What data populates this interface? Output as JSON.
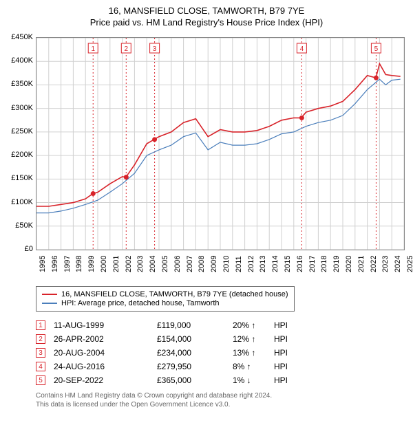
{
  "title_line1": "16, MANSFIELD CLOSE, TAMWORTH, B79 7YE",
  "title_line2": "Price paid vs. HM Land Registry's House Price Index (HPI)",
  "chart": {
    "type": "line",
    "background_color": "#ffffff",
    "grid_color": "#d0d0d0",
    "border_color": "#888888",
    "ylim": [
      0,
      450000
    ],
    "ytick_step": 50000,
    "ytick_labels": [
      "£0",
      "£50K",
      "£100K",
      "£150K",
      "£200K",
      "£250K",
      "£300K",
      "£350K",
      "£400K",
      "£450K"
    ],
    "xlim": [
      1995,
      2025
    ],
    "xtick_step": 1,
    "series": [
      {
        "name": "16, MANSFIELD CLOSE, TAMWORTH, B79 7YE (detached house)",
        "color": "#d8232a",
        "line_width": 1.6,
        "data": [
          [
            1995,
            92000
          ],
          [
            1996,
            92000
          ],
          [
            1997,
            96000
          ],
          [
            1998,
            100000
          ],
          [
            1999,
            108000
          ],
          [
            1999.6,
            119000
          ],
          [
            2000,
            122000
          ],
          [
            2001,
            140000
          ],
          [
            2002,
            155000
          ],
          [
            2002.3,
            154000
          ],
          [
            2003,
            180000
          ],
          [
            2004,
            225000
          ],
          [
            2004.6,
            234000
          ],
          [
            2005,
            240000
          ],
          [
            2006,
            250000
          ],
          [
            2007,
            270000
          ],
          [
            2008,
            278000
          ],
          [
            2009,
            240000
          ],
          [
            2010,
            255000
          ],
          [
            2011,
            250000
          ],
          [
            2012,
            250000
          ],
          [
            2013,
            253000
          ],
          [
            2014,
            262000
          ],
          [
            2015,
            275000
          ],
          [
            2016,
            280000
          ],
          [
            2016.6,
            279950
          ],
          [
            2017,
            292000
          ],
          [
            2018,
            300000
          ],
          [
            2019,
            305000
          ],
          [
            2020,
            315000
          ],
          [
            2021,
            340000
          ],
          [
            2022,
            370000
          ],
          [
            2022.7,
            365000
          ],
          [
            2023,
            395000
          ],
          [
            2023.5,
            372000
          ],
          [
            2024,
            370000
          ],
          [
            2024.7,
            368000
          ]
        ]
      },
      {
        "name": "HPI: Average price, detached house, Tamworth",
        "color": "#4a7ebb",
        "line_width": 1.2,
        "data": [
          [
            1995,
            78000
          ],
          [
            1996,
            78000
          ],
          [
            1997,
            82000
          ],
          [
            1998,
            88000
          ],
          [
            1999,
            96000
          ],
          [
            2000,
            105000
          ],
          [
            2001,
            122000
          ],
          [
            2002,
            140000
          ],
          [
            2003,
            162000
          ],
          [
            2004,
            200000
          ],
          [
            2005,
            212000
          ],
          [
            2006,
            222000
          ],
          [
            2007,
            240000
          ],
          [
            2008,
            248000
          ],
          [
            2009,
            212000
          ],
          [
            2010,
            228000
          ],
          [
            2011,
            222000
          ],
          [
            2012,
            222000
          ],
          [
            2013,
            225000
          ],
          [
            2014,
            234000
          ],
          [
            2015,
            246000
          ],
          [
            2016,
            250000
          ],
          [
            2017,
            262000
          ],
          [
            2018,
            270000
          ],
          [
            2019,
            275000
          ],
          [
            2020,
            285000
          ],
          [
            2021,
            310000
          ],
          [
            2022,
            340000
          ],
          [
            2023,
            362000
          ],
          [
            2023.5,
            350000
          ],
          [
            2024,
            360000
          ],
          [
            2024.7,
            362000
          ]
        ]
      }
    ],
    "sale_markers": [
      {
        "n": 1,
        "x": 1999.62
      },
      {
        "n": 2,
        "x": 2002.32
      },
      {
        "n": 3,
        "x": 2004.64
      },
      {
        "n": 4,
        "x": 2016.65
      },
      {
        "n": 5,
        "x": 2022.72
      }
    ],
    "sale_points": [
      {
        "x": 1999.62,
        "y": 119000
      },
      {
        "x": 2002.32,
        "y": 154000
      },
      {
        "x": 2004.64,
        "y": 234000
      },
      {
        "x": 2016.65,
        "y": 279950
      },
      {
        "x": 2022.72,
        "y": 365000
      }
    ],
    "marker_box_color": "#d8232a",
    "marker_box_bg": "#ffffff",
    "point_color": "#d8232a",
    "point_radius": 3.5
  },
  "legend": {
    "items": [
      {
        "color": "#d8232a",
        "label": "16, MANSFIELD CLOSE, TAMWORTH, B79 7YE (detached house)"
      },
      {
        "color": "#4a7ebb",
        "label": "HPI: Average price, detached house, Tamworth"
      }
    ]
  },
  "sales": [
    {
      "n": "1",
      "date": "11-AUG-1999",
      "price": "£119,000",
      "pct": "20%",
      "dir": "↑",
      "suffix": "HPI"
    },
    {
      "n": "2",
      "date": "26-APR-2002",
      "price": "£154,000",
      "pct": "12%",
      "dir": "↑",
      "suffix": "HPI"
    },
    {
      "n": "3",
      "date": "20-AUG-2004",
      "price": "£234,000",
      "pct": "13%",
      "dir": "↑",
      "suffix": "HPI"
    },
    {
      "n": "4",
      "date": "24-AUG-2016",
      "price": "£279,950",
      "pct": "8%",
      "dir": "↑",
      "suffix": "HPI"
    },
    {
      "n": "5",
      "date": "20-SEP-2022",
      "price": "£365,000",
      "pct": "1%",
      "dir": "↓",
      "suffix": "HPI"
    }
  ],
  "footnote_line1": "Contains HM Land Registry data © Crown copyright and database right 2024.",
  "footnote_line2": "This data is licensed under the Open Government Licence v3.0.",
  "colors": {
    "text": "#000000",
    "footnote": "#666666",
    "marker_red": "#d8232a"
  },
  "fontsize": {
    "title": 13,
    "axis": 11,
    "legend": 11,
    "table": 12,
    "footnote": 10
  }
}
